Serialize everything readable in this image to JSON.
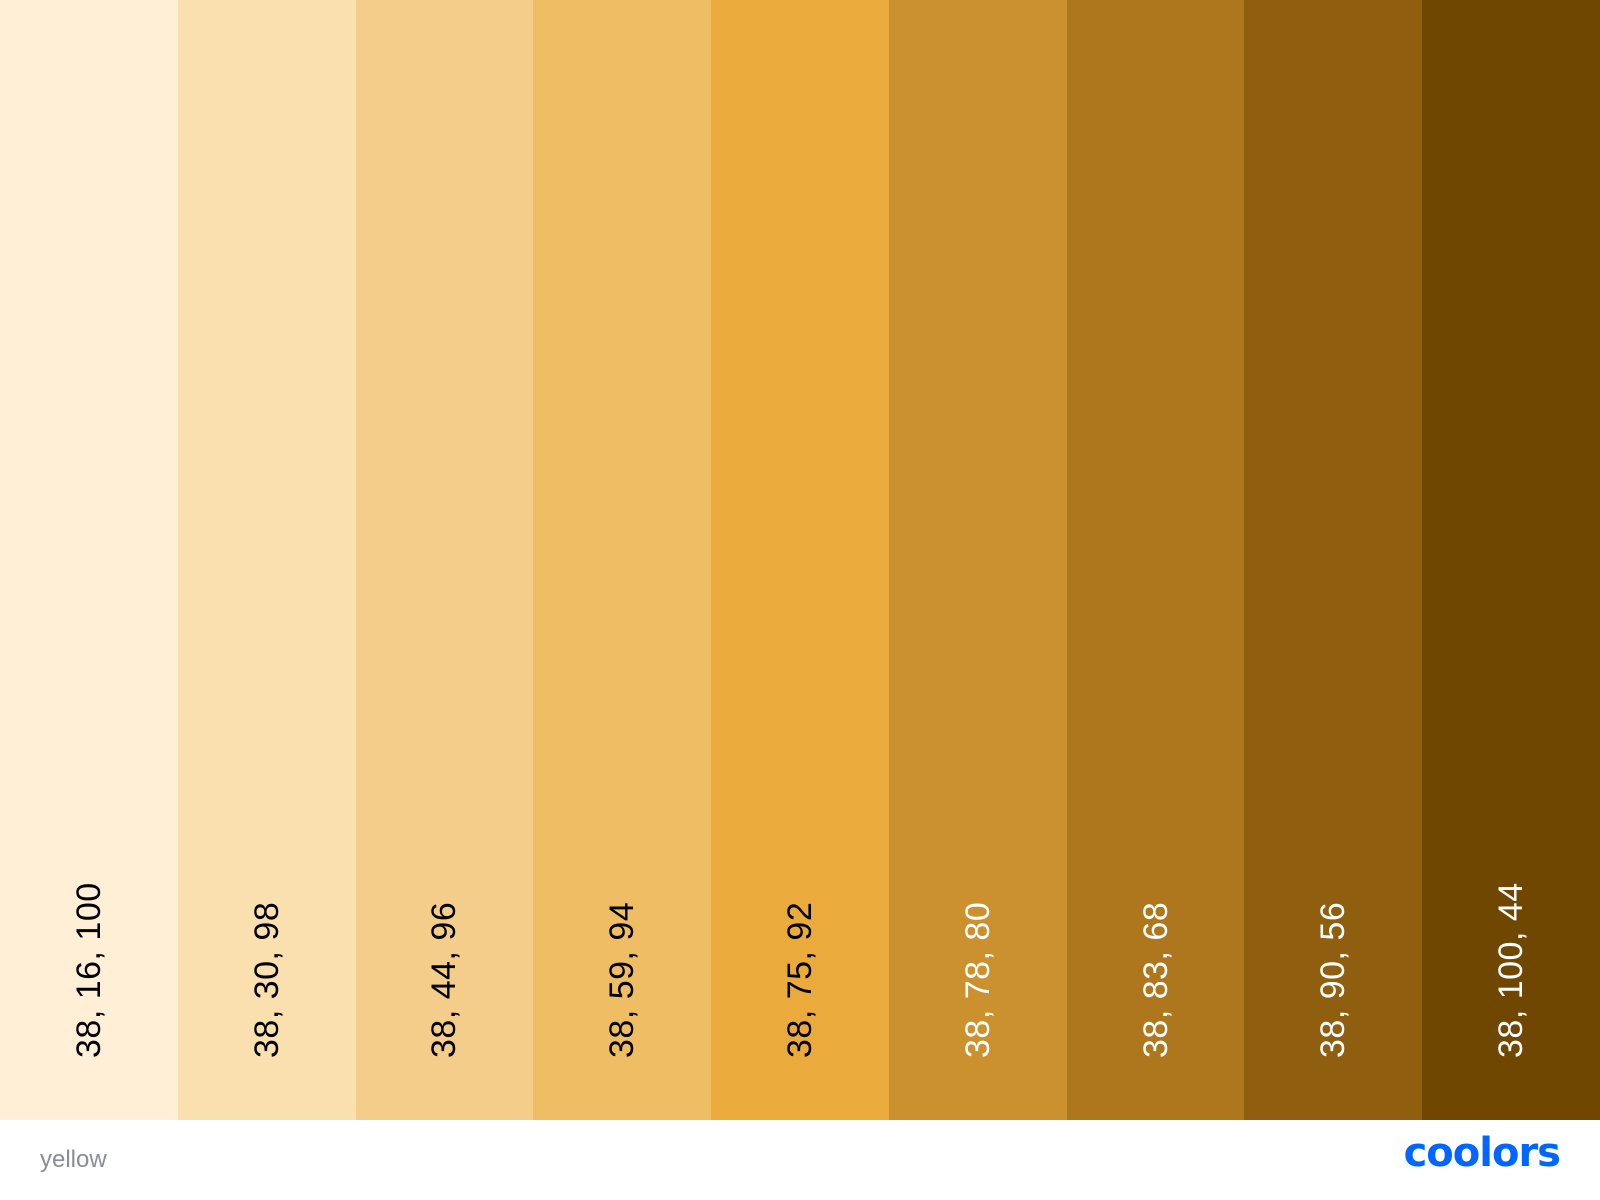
{
  "palette": {
    "name": "yellow",
    "swatches": [
      {
        "label": "38, 16, 100",
        "color": "#FFEFD6",
        "text_color": "#000000"
      },
      {
        "label": "38, 30, 98",
        "color": "#FAE0AF",
        "text_color": "#000000"
      },
      {
        "label": "38, 44, 96",
        "color": "#F5CD8A",
        "text_color": "#000000"
      },
      {
        "label": "38, 59, 94",
        "color": "#EFBD63",
        "text_color": "#000000"
      },
      {
        "label": "38, 75, 92",
        "color": "#EBAA3C",
        "text_color": "#000000"
      },
      {
        "label": "38, 78, 80",
        "color": "#CB912E",
        "text_color": "#FFFFFF"
      },
      {
        "label": "38, 83, 68",
        "color": "#AE771E",
        "text_color": "#FFFFFF"
      },
      {
        "label": "38, 90, 56",
        "color": "#8F5F0F",
        "text_color": "#FFFFFF"
      },
      {
        "label": "38, 100, 44",
        "color": "#704700",
        "text_color": "#FFFFFF"
      }
    ]
  },
  "footer": {
    "palette_name": "yellow",
    "brand": "coolors",
    "brand_color": "#0066FF"
  }
}
